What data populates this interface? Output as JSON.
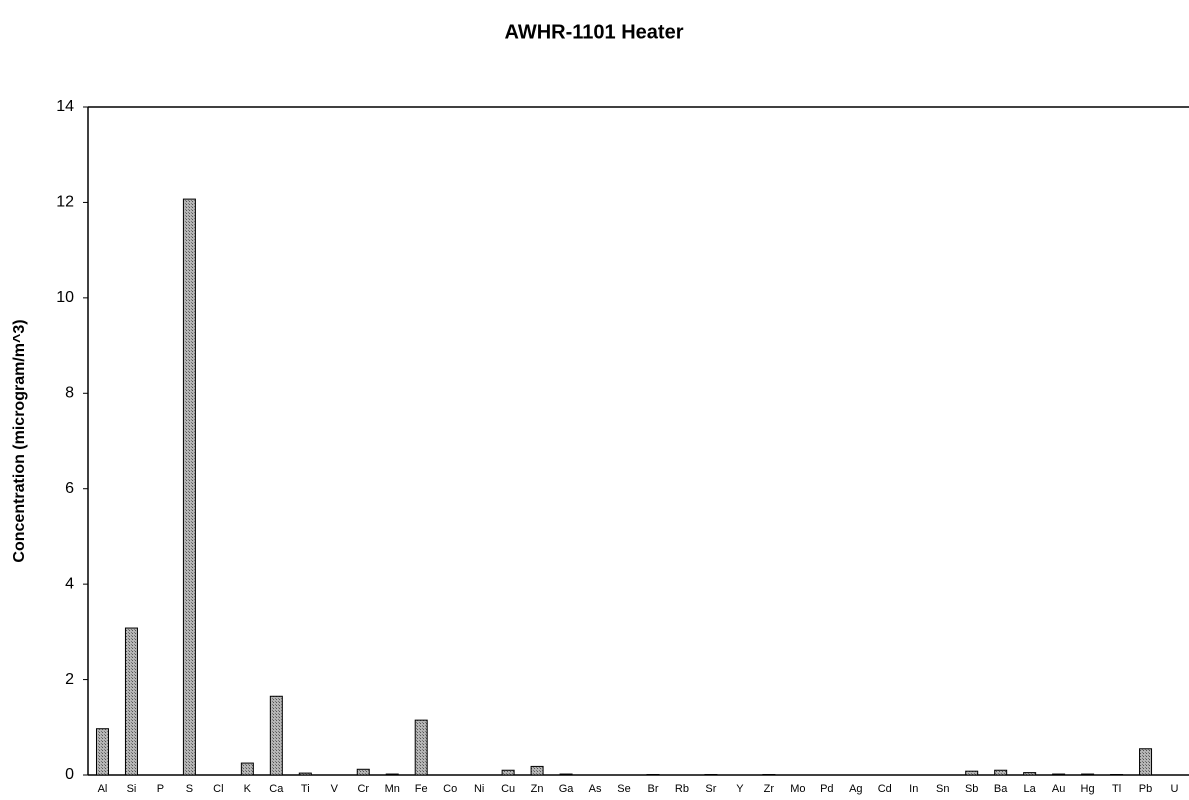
{
  "chart_data": {
    "type": "bar",
    "title": "AWHR-1101 Heater",
    "y_label": "Concentration (microgram/m^3)",
    "categories": [
      "Al",
      "Si",
      "P",
      "S",
      "Cl",
      "K",
      "Ca",
      "Ti",
      "V",
      "Cr",
      "Mn",
      "Fe",
      "Co",
      "Ni",
      "Cu",
      "Zn",
      "Ga",
      "As",
      "Se",
      "Br",
      "Rb",
      "Sr",
      "Y",
      "Zr",
      "Mo",
      "Pd",
      "Ag",
      "Cd",
      "In",
      "Sn",
      "Sb",
      "Ba",
      "La",
      "Au",
      "Hg",
      "Tl",
      "Pb",
      "U"
    ],
    "values": [
      0.97,
      3.08,
      0,
      12.07,
      0,
      0.25,
      1.65,
      0.04,
      0,
      0.12,
      0.02,
      1.15,
      0,
      0,
      0.1,
      0.18,
      0.02,
      0,
      0,
      0.01,
      0,
      0.01,
      0,
      0.01,
      0,
      0,
      0,
      0,
      0,
      0,
      0.08,
      0.1,
      0.05,
      0.02,
      0.02,
      0.01,
      0.55,
      0
    ],
    "color": "#9a9a9a",
    "ylim": [
      0,
      14
    ],
    "yticks": [
      0,
      2,
      4,
      6,
      8,
      10,
      12,
      14
    ],
    "grid": false
  }
}
